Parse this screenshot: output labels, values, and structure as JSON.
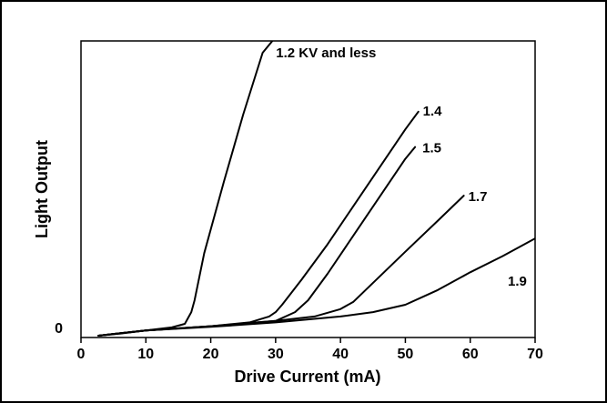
{
  "chart_data": {
    "type": "line",
    "xlabel": "Drive Current (mA)",
    "ylabel": "Light Output",
    "x_ticks": [
      "0",
      "10",
      "20",
      "30",
      "40",
      "50",
      "60",
      "70"
    ],
    "y_ticks": [
      "0"
    ],
    "xlim": [
      0,
      70
    ],
    "ylim": [
      0,
      100
    ],
    "grid": false,
    "legend": "none",
    "line_color": "#000000",
    "series": [
      {
        "name": "1.2 KV and less",
        "x": [
          2.7,
          6,
          10,
          14,
          16,
          17,
          17.5,
          19,
          22,
          25,
          28,
          29.5
        ],
        "y": [
          0,
          0.7,
          1.8,
          2.8,
          4,
          8,
          12,
          28,
          52,
          75,
          96,
          100
        ]
      },
      {
        "name": "1.4",
        "x": [
          2.7,
          10,
          20,
          26,
          29,
          30,
          31,
          34,
          38,
          42,
          46,
          50,
          52
        ],
        "y": [
          0,
          1.8,
          3.2,
          4.5,
          6.5,
          8,
          10.5,
          19,
          31,
          44,
          57,
          70,
          76
        ]
      },
      {
        "name": "1.5",
        "x": [
          2.7,
          10,
          20,
          30,
          33,
          35,
          38,
          42,
          46,
          50,
          51.5
        ],
        "y": [
          0,
          1.8,
          3.2,
          5,
          8,
          12,
          21,
          34,
          47,
          60,
          64
        ]
      },
      {
        "name": "1.7",
        "x": [
          2.7,
          10,
          20,
          30,
          36,
          40,
          42,
          46,
          50,
          55,
          59
        ],
        "y": [
          0,
          1.8,
          3.2,
          5,
          6.5,
          9,
          11.5,
          20,
          28.5,
          39,
          47.5
        ]
      },
      {
        "name": "1.9",
        "x": [
          2.7,
          10,
          20,
          30,
          40,
          45,
          50,
          53,
          55,
          60,
          65,
          70
        ],
        "y": [
          0,
          1.8,
          3,
          4.5,
          6.5,
          8,
          10.5,
          13.5,
          15.5,
          21.5,
          27,
          33
        ]
      }
    ],
    "annotations": [
      {
        "text": "0",
        "target": "y-origin"
      }
    ]
  }
}
